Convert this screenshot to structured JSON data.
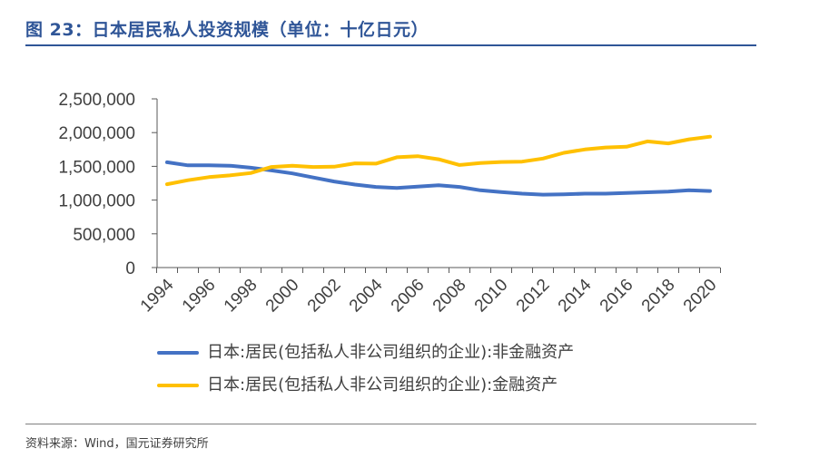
{
  "header": {
    "title": "图 23：日本居民私人投资规模（单位：十亿日元）"
  },
  "footer": {
    "source": "资料来源：Wind，国元证券研究所"
  },
  "chart_data": {
    "type": "line",
    "title": "",
    "xlabel": "",
    "ylabel": "",
    "x": [
      1994,
      1995,
      1996,
      1997,
      1998,
      1999,
      2000,
      2001,
      2002,
      2003,
      2004,
      2005,
      2006,
      2007,
      2008,
      2009,
      2010,
      2011,
      2012,
      2013,
      2014,
      2015,
      2016,
      2017,
      2018,
      2019,
      2020
    ],
    "x_tick_labels": [
      "1994",
      "1996",
      "1998",
      "2000",
      "2002",
      "2004",
      "2006",
      "2008",
      "2010",
      "2012",
      "2014",
      "2016",
      "2018",
      "2020"
    ],
    "ylim": [
      0,
      2500000
    ],
    "y_ticks": [
      0,
      500000,
      1000000,
      1500000,
      2000000,
      2500000
    ],
    "y_tick_labels": [
      "0",
      "500,000",
      "1,000,000",
      "1,500,000",
      "2,000,000",
      "2,500,000"
    ],
    "grid": false,
    "legend_position": "bottom",
    "series": [
      {
        "name": "日本:居民(包括私人非公司组织的企业):非金融资产",
        "color": "#4472C4",
        "values": [
          1560000,
          1515000,
          1515000,
          1510000,
          1480000,
          1440000,
          1395000,
          1335000,
          1275000,
          1230000,
          1195000,
          1180000,
          1200000,
          1220000,
          1195000,
          1145000,
          1120000,
          1095000,
          1080000,
          1085000,
          1095000,
          1095000,
          1105000,
          1115000,
          1125000,
          1145000,
          1135000
        ]
      },
      {
        "name": "日本:居民(包括私人非公司组织的企业):金融资产",
        "color": "#FFC000",
        "values": [
          1235000,
          1295000,
          1340000,
          1365000,
          1400000,
          1490000,
          1510000,
          1490000,
          1495000,
          1545000,
          1540000,
          1635000,
          1650000,
          1605000,
          1520000,
          1550000,
          1565000,
          1570000,
          1615000,
          1700000,
          1750000,
          1780000,
          1790000,
          1870000,
          1840000,
          1900000,
          1940000
        ]
      }
    ]
  }
}
